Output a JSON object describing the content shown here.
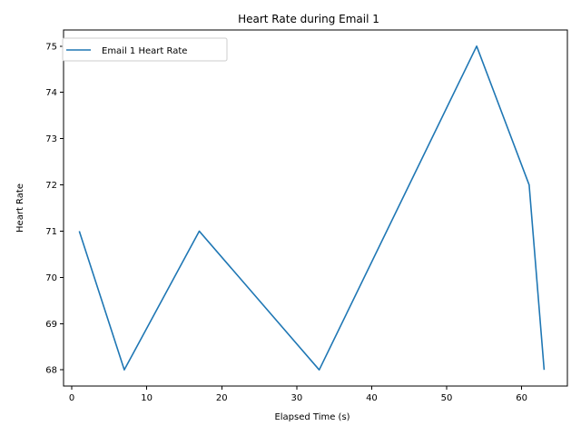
{
  "chart_data": {
    "type": "line",
    "title": "Heart Rate during Email 1",
    "xlabel": "Elapsed Time (s)",
    "ylabel": "Heart Rate",
    "xlim": [
      -1.1,
      66.1
    ],
    "ylim": [
      67.65,
      75.35
    ],
    "xticks": [
      0,
      10,
      20,
      30,
      40,
      50,
      60
    ],
    "yticks": [
      68,
      69,
      70,
      71,
      72,
      73,
      74,
      75
    ],
    "grid": false,
    "legend_position": "upper-left",
    "series": [
      {
        "name": "Email 1 Heart Rate",
        "color": "#1f77b4",
        "x": [
          1,
          7,
          17,
          33,
          54,
          61,
          63
        ],
        "y": [
          71,
          68,
          71,
          68,
          75,
          72,
          68
        ]
      }
    ]
  }
}
